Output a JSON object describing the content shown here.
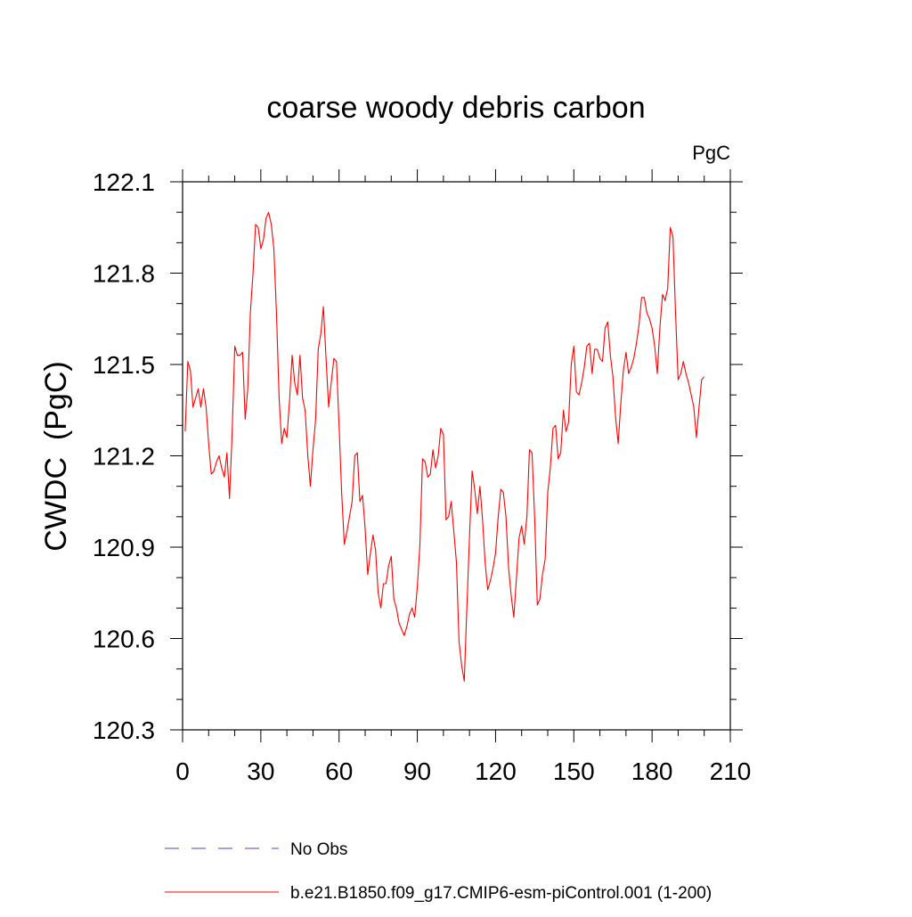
{
  "chart_data": {
    "type": "line",
    "title": "coarse woody debris carbon",
    "units_label": "PgC",
    "ylabel": "CWDC  (PgC)",
    "xlabel": "",
    "xlim": [
      0,
      210
    ],
    "ylim": [
      120.3,
      122.1
    ],
    "x_ticks": [
      0,
      30,
      60,
      90,
      120,
      150,
      180,
      210
    ],
    "x_tick_labels": [
      "0",
      "30",
      "60",
      "90",
      "120",
      "150",
      "180",
      "210"
    ],
    "y_ticks": [
      120.3,
      120.6,
      120.9,
      121.2,
      121.5,
      121.8,
      122.1
    ],
    "y_tick_labels": [
      "120.3",
      "120.6",
      "120.9",
      "121.2",
      "121.5",
      "121.8",
      "122.1"
    ],
    "grid": false,
    "legend_position": "bottom",
    "series": [
      {
        "name": "No Obs",
        "color": "#4a46c8",
        "dash": "dashed",
        "x": [],
        "y": []
      },
      {
        "name": "b.e21.B1850.f09_g17.CMIP6-esm-piControl.001 (1-200)",
        "color": "#ff0000",
        "dash": "solid",
        "x": [
          1,
          2,
          3,
          4,
          5,
          6,
          7,
          8,
          9,
          10,
          11,
          12,
          13,
          14,
          15,
          16,
          17,
          18,
          19,
          20,
          21,
          22,
          23,
          24,
          25,
          26,
          27,
          28,
          29,
          30,
          31,
          32,
          33,
          34,
          35,
          36,
          37,
          38,
          39,
          40,
          41,
          42,
          43,
          44,
          45,
          46,
          47,
          48,
          49,
          50,
          51,
          52,
          53,
          54,
          55,
          56,
          57,
          58,
          59,
          60,
          61,
          62,
          63,
          64,
          65,
          66,
          67,
          68,
          69,
          70,
          71,
          72,
          73,
          74,
          75,
          76,
          77,
          78,
          79,
          80,
          81,
          82,
          83,
          84,
          85,
          86,
          87,
          88,
          89,
          90,
          91,
          92,
          93,
          94,
          95,
          96,
          97,
          98,
          99,
          100,
          101,
          102,
          103,
          104,
          105,
          106,
          107,
          108,
          109,
          110,
          111,
          112,
          113,
          114,
          115,
          116,
          117,
          118,
          119,
          120,
          121,
          122,
          123,
          124,
          125,
          126,
          127,
          128,
          129,
          130,
          131,
          132,
          133,
          134,
          135,
          136,
          137,
          138,
          139,
          140,
          141,
          142,
          143,
          144,
          145,
          146,
          147,
          148,
          149,
          150,
          151,
          152,
          153,
          154,
          155,
          156,
          157,
          158,
          159,
          160,
          161,
          162,
          163,
          164,
          165,
          166,
          167,
          168,
          169,
          170,
          171,
          172,
          173,
          174,
          175,
          176,
          177,
          178,
          179,
          180,
          181,
          182,
          183,
          184,
          185,
          186,
          187,
          188,
          189,
          190,
          191,
          192,
          193,
          194,
          195,
          196,
          197,
          198,
          199,
          200
        ],
        "y": [
          121.28,
          121.51,
          121.48,
          121.36,
          121.39,
          121.42,
          121.36,
          121.42,
          121.36,
          121.24,
          121.14,
          121.15,
          121.18,
          121.2,
          121.16,
          121.13,
          121.21,
          121.06,
          121.27,
          121.56,
          121.53,
          121.53,
          121.54,
          121.32,
          121.42,
          121.67,
          121.8,
          121.96,
          121.95,
          121.88,
          121.91,
          121.98,
          122.0,
          121.96,
          121.88,
          121.67,
          121.39,
          121.24,
          121.29,
          121.26,
          121.38,
          121.53,
          121.44,
          121.4,
          121.53,
          121.39,
          121.35,
          121.2,
          121.1,
          121.22,
          121.32,
          121.55,
          121.6,
          121.69,
          121.52,
          121.36,
          121.44,
          121.52,
          121.51,
          121.3,
          121.08,
          120.91,
          120.95,
          121.0,
          121.05,
          121.2,
          121.21,
          121.05,
          121.07,
          120.96,
          120.81,
          120.88,
          120.94,
          120.89,
          120.75,
          120.7,
          120.78,
          120.78,
          120.84,
          120.87,
          120.73,
          120.7,
          120.65,
          120.63,
          120.61,
          120.64,
          120.68,
          120.7,
          120.67,
          120.77,
          120.91,
          121.19,
          121.18,
          121.13,
          121.14,
          121.22,
          121.16,
          121.2,
          121.29,
          121.27,
          120.99,
          121.0,
          121.05,
          120.95,
          120.85,
          120.59,
          120.51,
          120.46,
          120.7,
          120.93,
          121.15,
          121.09,
          121.01,
          121.1,
          120.99,
          120.85,
          120.76,
          120.79,
          120.83,
          120.88,
          121.0,
          121.09,
          121.08,
          121.0,
          120.83,
          120.74,
          120.67,
          120.8,
          120.93,
          120.97,
          120.91,
          121.0,
          121.22,
          121.21,
          120.99,
          120.71,
          120.73,
          120.81,
          120.86,
          121.08,
          121.16,
          121.29,
          121.3,
          121.19,
          121.21,
          121.35,
          121.28,
          121.31,
          121.5,
          121.56,
          121.41,
          121.4,
          121.44,
          121.49,
          121.56,
          121.57,
          121.47,
          121.55,
          121.55,
          121.52,
          121.51,
          121.62,
          121.64,
          121.53,
          121.46,
          121.33,
          121.24,
          121.37,
          121.48,
          121.54,
          121.47,
          121.49,
          121.52,
          121.57,
          121.63,
          121.72,
          121.72,
          121.67,
          121.65,
          121.62,
          121.56,
          121.47,
          121.62,
          121.73,
          121.71,
          121.75,
          121.95,
          121.92,
          121.67,
          121.45,
          121.47,
          121.51,
          121.47,
          121.44,
          121.4,
          121.36,
          121.26,
          121.36,
          121.45,
          121.46
        ]
      }
    ]
  }
}
